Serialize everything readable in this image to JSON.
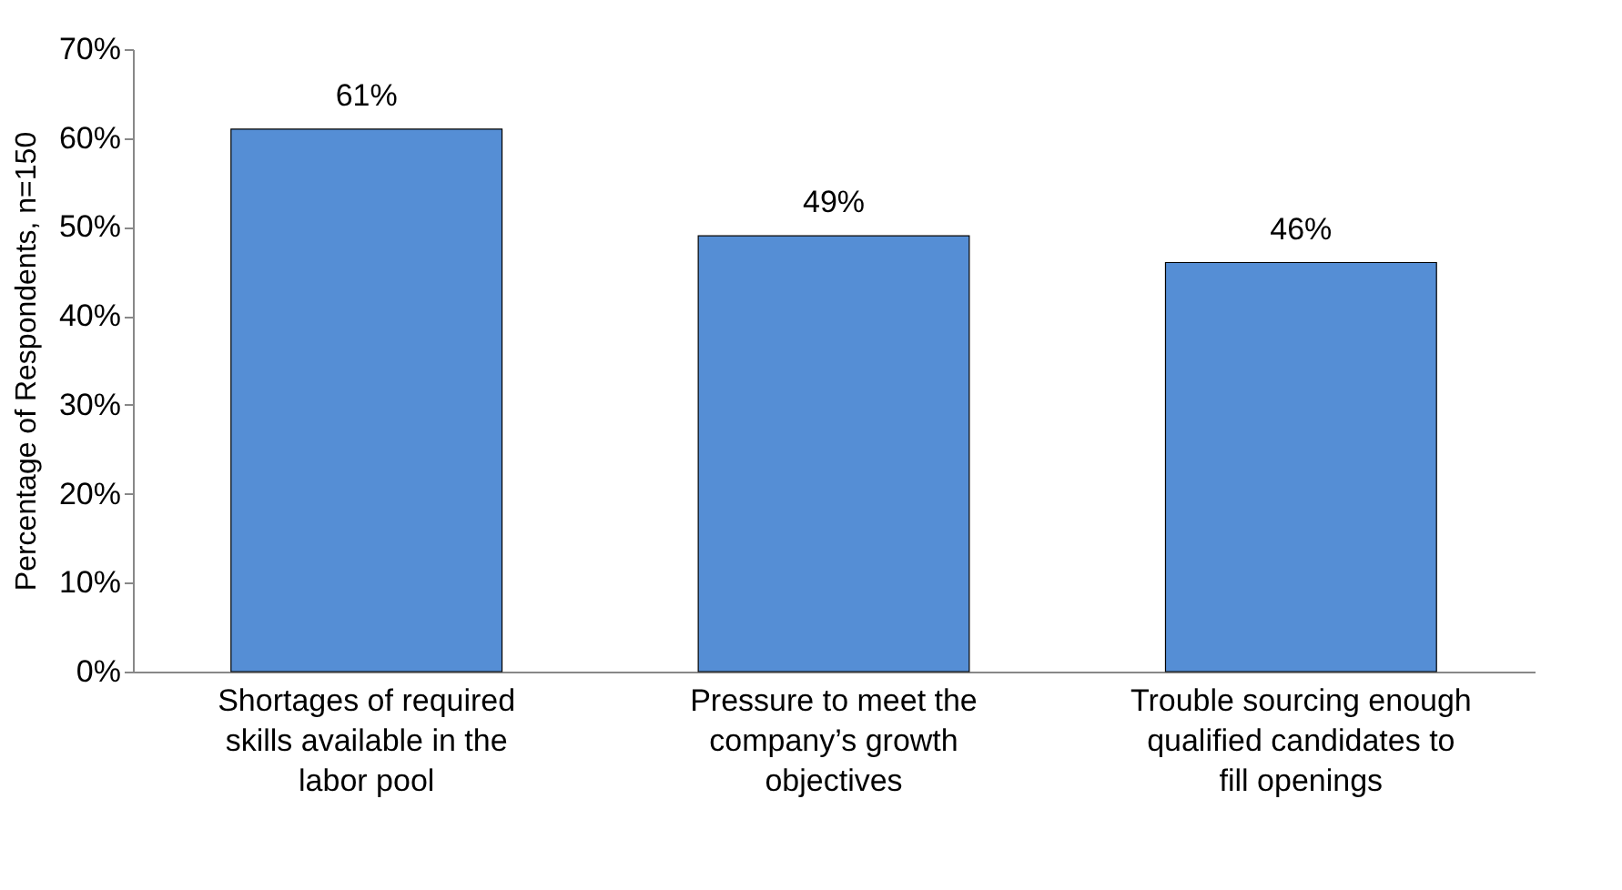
{
  "chart_data": {
    "type": "bar",
    "ylabel": "Percentage of Respondents, n=150",
    "categories": [
      "Shortages of required skills available in the labor pool",
      "Pressure to meet the company’s growth objectives",
      "Trouble sourcing enough qualified candidates to fill openings"
    ],
    "values": [
      61,
      49,
      46
    ],
    "color": "#558ed5",
    "value_labels": [
      "61%",
      "49%",
      "46%"
    ],
    "ylim": [
      0,
      70
    ],
    "yticks": [
      {
        "value": 0,
        "label": "0%"
      },
      {
        "value": 10,
        "label": "10%"
      },
      {
        "value": 20,
        "label": "20%"
      },
      {
        "value": 30,
        "label": "30%"
      },
      {
        "value": 40,
        "label": "40%"
      },
      {
        "value": 50,
        "label": "50%"
      },
      {
        "value": 60,
        "label": "60%"
      },
      {
        "value": 70,
        "label": "70%"
      }
    ],
    "grid": false
  }
}
